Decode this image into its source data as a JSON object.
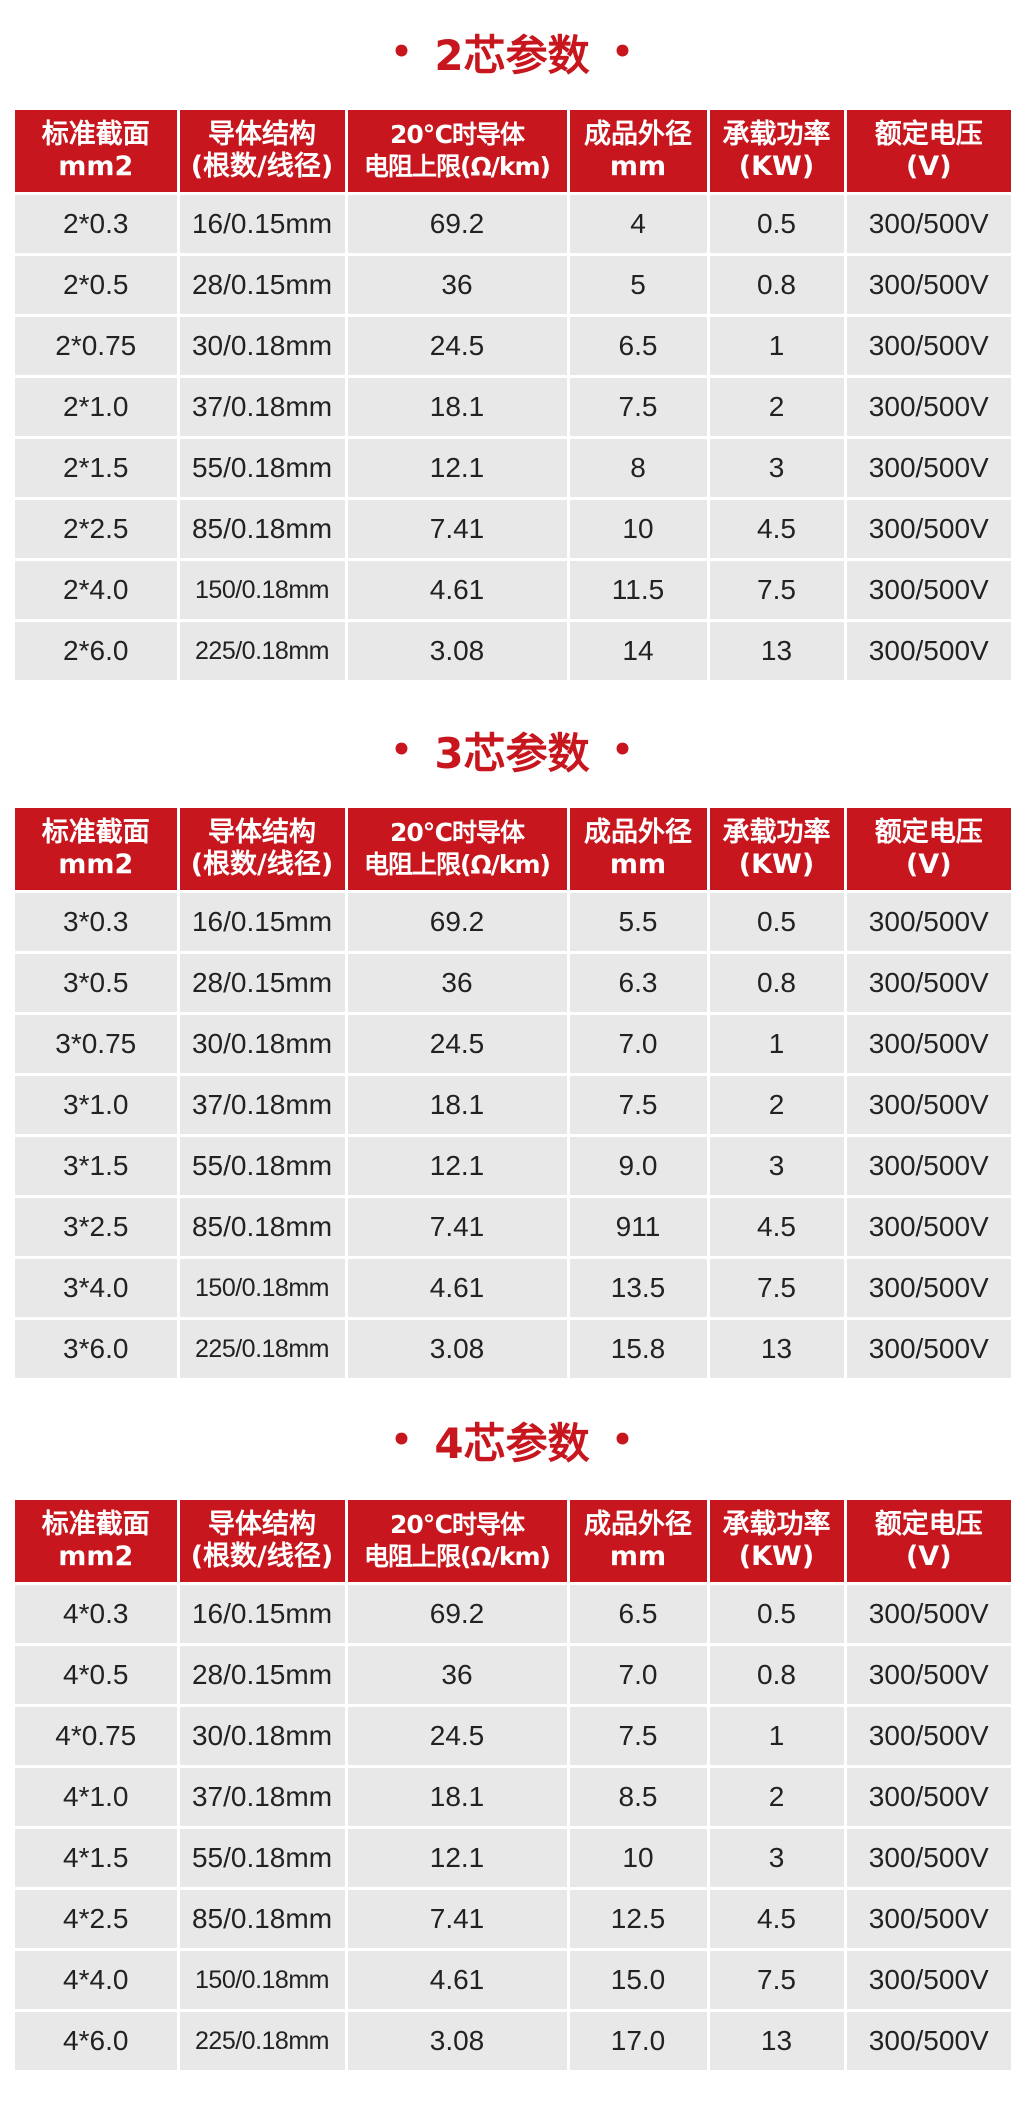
{
  "headers": [
    "标准截面\nmm2",
    "导体结构\n(根数/线径)",
    "20℃时导体\n电阻上限(Ω/km)",
    "成品外径\nmm",
    "承载功率\n(KW)",
    "额定电压\n(V)"
  ],
  "sections": [
    {
      "title": "2芯参数",
      "rows": [
        [
          "2*0.3",
          "16/0.15mm",
          "69.2",
          "4",
          "0.5",
          "300/500V"
        ],
        [
          "2*0.5",
          "28/0.15mm",
          "36",
          "5",
          "0.8",
          "300/500V"
        ],
        [
          "2*0.75",
          "30/0.18mm",
          "24.5",
          "6.5",
          "1",
          "300/500V"
        ],
        [
          "2*1.0",
          "37/0.18mm",
          "18.1",
          "7.5",
          "2",
          "300/500V"
        ],
        [
          "2*1.5",
          "55/0.18mm",
          "12.1",
          "8",
          "3",
          "300/500V"
        ],
        [
          "2*2.5",
          "85/0.18mm",
          "7.41",
          "10",
          "4.5",
          "300/500V"
        ],
        [
          "2*4.0",
          "150/0.18mm",
          "4.61",
          "11.5",
          "7.5",
          "300/500V"
        ],
        [
          "2*6.0",
          "225/0.18mm",
          "3.08",
          "14",
          "13",
          "300/500V"
        ]
      ]
    },
    {
      "title": "3芯参数",
      "rows": [
        [
          "3*0.3",
          "16/0.15mm",
          "69.2",
          "5.5",
          "0.5",
          "300/500V"
        ],
        [
          "3*0.5",
          "28/0.15mm",
          "36",
          "6.3",
          "0.8",
          "300/500V"
        ],
        [
          "3*0.75",
          "30/0.18mm",
          "24.5",
          "7.0",
          "1",
          "300/500V"
        ],
        [
          "3*1.0",
          "37/0.18mm",
          "18.1",
          "7.5",
          "2",
          "300/500V"
        ],
        [
          "3*1.5",
          "55/0.18mm",
          "12.1",
          "9.0",
          "3",
          "300/500V"
        ],
        [
          "3*2.5",
          "85/0.18mm",
          "7.41",
          "911",
          "4.5",
          "300/500V"
        ],
        [
          "3*4.0",
          "150/0.18mm",
          "4.61",
          "13.5",
          "7.5",
          "300/500V"
        ],
        [
          "3*6.0",
          "225/0.18mm",
          "3.08",
          "15.8",
          "13",
          "300/500V"
        ]
      ]
    },
    {
      "title": "4芯参数",
      "rows": [
        [
          "4*0.3",
          "16/0.15mm",
          "69.2",
          "6.5",
          "0.5",
          "300/500V"
        ],
        [
          "4*0.5",
          "28/0.15mm",
          "36",
          "7.0",
          "0.8",
          "300/500V"
        ],
        [
          "4*0.75",
          "30/0.18mm",
          "24.5",
          "7.5",
          "1",
          "300/500V"
        ],
        [
          "4*1.0",
          "37/0.18mm",
          "18.1",
          "8.5",
          "2",
          "300/500V"
        ],
        [
          "4*1.5",
          "55/0.18mm",
          "12.1",
          "10",
          "3",
          "300/500V"
        ],
        [
          "4*2.5",
          "85/0.18mm",
          "7.41",
          "12.5",
          "4.5",
          "300/500V"
        ],
        [
          "4*4.0",
          "150/0.18mm",
          "4.61",
          "15.0",
          "7.5",
          "300/500V"
        ],
        [
          "4*6.0",
          "225/0.18mm",
          "3.08",
          "17.0",
          "13",
          "300/500V"
        ]
      ]
    }
  ],
  "colors": {
    "accent": "#c8161e",
    "row_bg": "#e8e8e8",
    "text": "#222222"
  }
}
